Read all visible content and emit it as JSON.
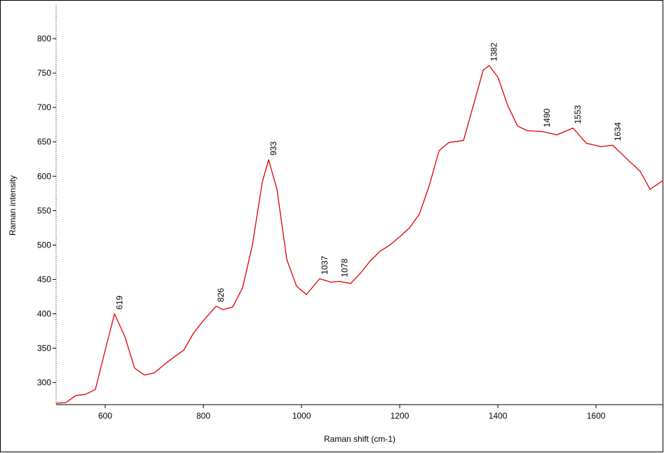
{
  "chart_data": {
    "type": "line",
    "xlabel": "Raman shift (cm-1)",
    "ylabel": "Raman intensity",
    "color": "#e00000",
    "x": [
      500,
      520,
      540,
      560,
      580,
      600,
      619,
      640,
      660,
      680,
      700,
      720,
      740,
      760,
      780,
      800,
      826,
      840,
      860,
      880,
      900,
      920,
      933,
      950,
      970,
      990,
      1010,
      1037,
      1060,
      1078,
      1100,
      1120,
      1140,
      1160,
      1180,
      1200,
      1220,
      1240,
      1260,
      1280,
      1300,
      1330,
      1350,
      1370,
      1382,
      1400,
      1420,
      1440,
      1460,
      1490,
      1520,
      1553,
      1580,
      1610,
      1634,
      1660,
      1690,
      1710,
      1737
    ],
    "values": [
      270,
      271,
      281,
      283,
      290,
      347,
      400,
      367,
      321,
      311,
      314,
      326,
      337,
      347,
      372,
      390,
      411,
      406,
      410,
      438,
      500,
      591,
      624,
      581,
      479,
      440,
      428,
      451,
      446,
      447,
      444,
      459,
      477,
      491,
      500,
      512,
      525,
      545,
      586,
      637,
      649,
      652,
      703,
      754,
      761,
      744,
      703,
      673,
      666,
      665,
      660,
      670,
      648,
      643,
      645,
      627,
      607,
      581,
      594
    ],
    "annotations": [
      {
        "text": "619",
        "x": 619,
        "y": 400
      },
      {
        "text": "826",
        "x": 826,
        "y": 411
      },
      {
        "text": "933",
        "x": 933,
        "y": 624
      },
      {
        "text": "1037",
        "x": 1037,
        "y": 451
      },
      {
        "text": "1078",
        "x": 1078,
        "y": 447
      },
      {
        "text": "1382",
        "x": 1382,
        "y": 761
      },
      {
        "text": "1490",
        "x": 1490,
        "y": 665
      },
      {
        "text": "1553",
        "x": 1553,
        "y": 670
      },
      {
        "text": "1634",
        "x": 1634,
        "y": 645
      }
    ],
    "xlim": [
      500,
      1737
    ],
    "ylim": [
      268,
      848
    ],
    "xticks": [
      600,
      800,
      1000,
      1200,
      1400,
      1600
    ],
    "yticks": [
      300,
      350,
      400,
      450,
      500,
      550,
      600,
      650,
      700,
      750,
      800
    ]
  }
}
